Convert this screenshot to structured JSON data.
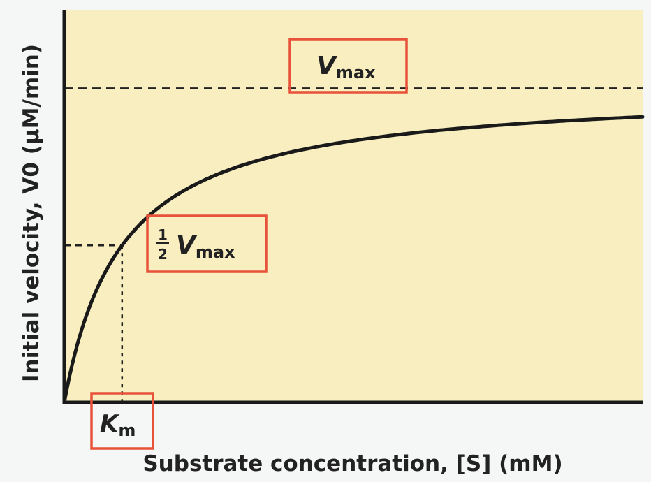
{
  "chart_data": {
    "type": "line",
    "title": "",
    "xlabel": "Substrate concentration, [S] (mM)",
    "ylabel": "Initial velocity, V0 (μM/min)",
    "grid": false,
    "legend": "none",
    "background": "#f8eebf",
    "curve_color": "#1a1a1a",
    "box_color": "#e8513a",
    "xlim": [
      0,
      10
    ],
    "ylim": [
      0,
      1.0
    ],
    "vmax": 0.8,
    "km": 1.0,
    "annotations": {
      "vmax": {
        "main": "V",
        "sub": "max"
      },
      "half_vmax": {
        "num": "1",
        "den": "2",
        "main": "V",
        "sub": "max"
      },
      "km": {
        "main": "K",
        "sub": "m"
      }
    }
  }
}
